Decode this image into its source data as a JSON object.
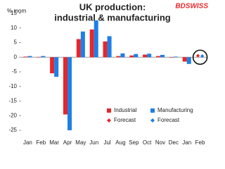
{
  "chart_data": {
    "type": "bar",
    "title": [
      "UK production:",
      "industrial & manufacturing"
    ],
    "logo": "BDSWISS",
    "y_label": "% mom",
    "categories": [
      "Jan",
      "Feb",
      "Mar",
      "Apr",
      "May",
      "Jun",
      "Jul",
      "Aug",
      "Sep",
      "Oct",
      "Nov",
      "Dec",
      "Jan",
      "Feb"
    ],
    "series": [
      {
        "name": "Industrial",
        "color": "#e8262a",
        "marker": "bar",
        "values": [
          0.2,
          0.1,
          -5.5,
          -19.6,
          6.2,
          9.5,
          5.4,
          0.4,
          0.6,
          0.9,
          0.4,
          -0.1,
          -1.5,
          null
        ]
      },
      {
        "name": "Manufacturing",
        "color": "#1e7fe6",
        "marker": "bar",
        "values": [
          0.4,
          0.4,
          -6.7,
          -25.0,
          8.8,
          12.6,
          7.2,
          1.3,
          1.1,
          1.2,
          0.8,
          0.2,
          -2.3,
          null
        ]
      },
      {
        "name": "Forecast",
        "color": "#e8262a",
        "marker": "diamond",
        "values": [
          null,
          null,
          null,
          null,
          null,
          null,
          null,
          null,
          null,
          null,
          null,
          null,
          null,
          0.5
        ]
      },
      {
        "name": "Forecast",
        "color": "#1e7fe6",
        "marker": "diamond",
        "values": [
          null,
          null,
          null,
          null,
          null,
          null,
          null,
          null,
          null,
          null,
          null,
          null,
          null,
          0.4
        ]
      }
    ],
    "ylim": [
      -27,
      17
    ],
    "yticks": [
      -25,
      -20,
      -15,
      -10,
      -5,
      0,
      5,
      10,
      15
    ],
    "grid": false,
    "legend_position": "lower right"
  }
}
